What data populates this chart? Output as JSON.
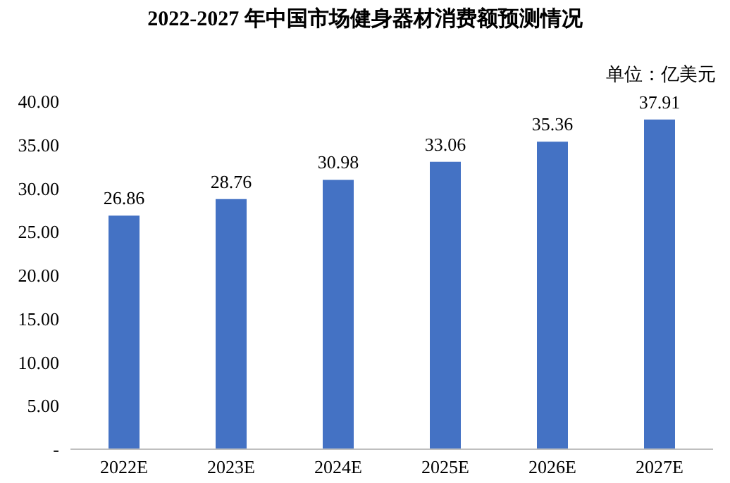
{
  "chart_data": {
    "type": "bar",
    "title": "2022-2027 年中国市场健身器材消费额预测情况",
    "annotations": [
      "单位：亿美元"
    ],
    "categories": [
      "2022E",
      "2023E",
      "2024E",
      "2025E",
      "2026E",
      "2027E"
    ],
    "values": [
      26.86,
      28.76,
      30.98,
      33.06,
      35.36,
      37.91
    ],
    "color": "#4472c4",
    "ylim": [
      0,
      40
    ],
    "yticks": [
      {
        "value": 0,
        "label": "-"
      },
      {
        "value": 5,
        "label": "5.00"
      },
      {
        "value": 10,
        "label": "10.00"
      },
      {
        "value": 15,
        "label": "15.00"
      },
      {
        "value": 20,
        "label": "20.00"
      },
      {
        "value": 25,
        "label": "25.00"
      },
      {
        "value": 30,
        "label": "30.00"
      },
      {
        "value": 35,
        "label": "35.00"
      },
      {
        "value": 40,
        "label": "40.00"
      }
    ],
    "grid": false,
    "data_labels": true
  }
}
